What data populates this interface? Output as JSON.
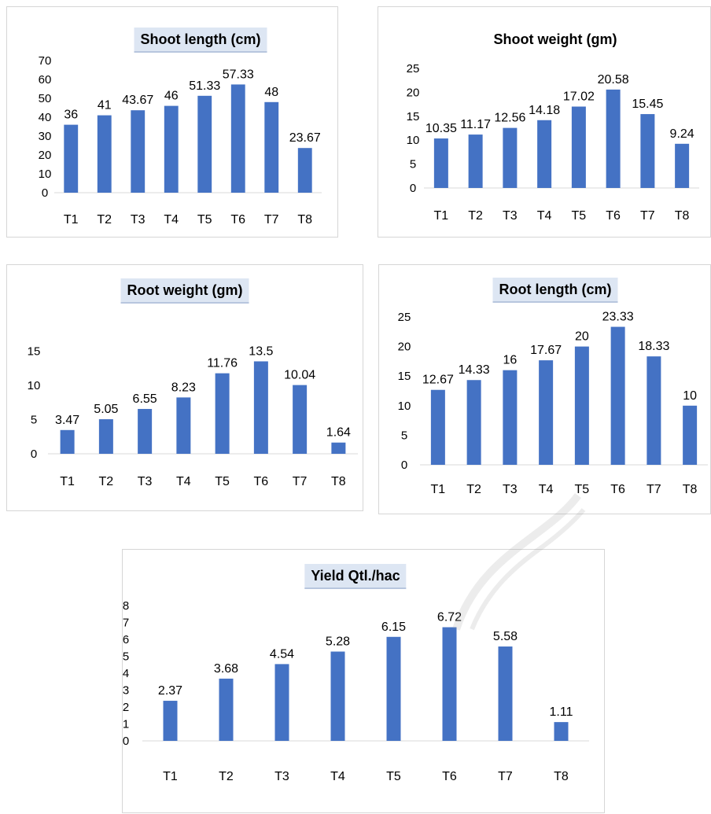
{
  "chart_data": [
    {
      "type": "bar",
      "title": "Shoot length (cm)",
      "categories": [
        "T1",
        "T2",
        "T3",
        "T4",
        "T5",
        "T6",
        "T7",
        "T8"
      ],
      "values": [
        36,
        41,
        43.67,
        46,
        51.33,
        57.33,
        48,
        23.67
      ],
      "value_labels": [
        "36",
        "41",
        "43.67",
        "46",
        "51.33",
        "57.33",
        "48",
        "23.67"
      ],
      "ylim": [
        0,
        70
      ],
      "yticks": [
        0,
        10,
        20,
        30,
        40,
        50,
        60,
        70
      ],
      "grid": false,
      "legend": "none",
      "bar_color": "#4472c4"
    },
    {
      "type": "bar",
      "title": "Shoot weight (gm)",
      "categories": [
        "T1",
        "T2",
        "T3",
        "T4",
        "T5",
        "T6",
        "T7",
        "T8"
      ],
      "values": [
        10.35,
        11.17,
        12.56,
        14.18,
        17.02,
        20.58,
        15.45,
        9.24
      ],
      "value_labels": [
        "10.35",
        "11.17",
        "12.56",
        "14.18",
        "17.02",
        "20.58",
        "15.45",
        "9.24"
      ],
      "ylim": [
        0,
        25
      ],
      "yticks": [
        0,
        5,
        10,
        15,
        20,
        25
      ],
      "grid": false,
      "legend": "none",
      "bar_color": "#4472c4"
    },
    {
      "type": "bar",
      "title": "Root weight (gm)",
      "categories": [
        "T1",
        "T2",
        "T3",
        "T4",
        "T5",
        "T6",
        "T7",
        "T8"
      ],
      "values": [
        3.47,
        5.05,
        6.55,
        8.23,
        11.76,
        13.5,
        10.04,
        1.64
      ],
      "value_labels": [
        "3.47",
        "5.05",
        "6.55",
        "8.23",
        "11.76",
        "13.5",
        "10.04",
        "1.64"
      ],
      "ylim": [
        0,
        17
      ],
      "yticks": [
        0,
        5,
        10,
        15
      ],
      "grid": false,
      "legend": "none",
      "bar_color": "#4472c4"
    },
    {
      "type": "bar",
      "title": "Root length (cm)",
      "categories": [
        "T1",
        "T2",
        "T3",
        "T4",
        "T5",
        "T6",
        "T7",
        "T8"
      ],
      "values": [
        12.67,
        14.33,
        16,
        17.67,
        20,
        23.33,
        18.33,
        10
      ],
      "value_labels": [
        "12.67",
        "14.33",
        "16",
        "17.67",
        "20",
        "23.33",
        "18.33",
        "10"
      ],
      "ylim": [
        0,
        25
      ],
      "yticks": [
        0,
        5,
        10,
        15,
        20,
        25
      ],
      "grid": false,
      "legend": "none",
      "bar_color": "#4472c4"
    },
    {
      "type": "bar",
      "title": "Yield Qtl./hac",
      "categories": [
        "T1",
        "T2",
        "T3",
        "T4",
        "T5",
        "T6",
        "T7",
        "T8"
      ],
      "values": [
        2.37,
        3.68,
        4.54,
        5.28,
        6.15,
        6.72,
        5.58,
        1.11
      ],
      "value_labels": [
        "2.37",
        "3.68",
        "4.54",
        "5.28",
        "6.15",
        "6.72",
        "5.58",
        "1.11"
      ],
      "ylim": [
        0,
        8
      ],
      "yticks": [
        0,
        1,
        2,
        3,
        4,
        5,
        6,
        7,
        8
      ],
      "grid": false,
      "legend": "none",
      "bar_color": "#4472c4"
    }
  ]
}
